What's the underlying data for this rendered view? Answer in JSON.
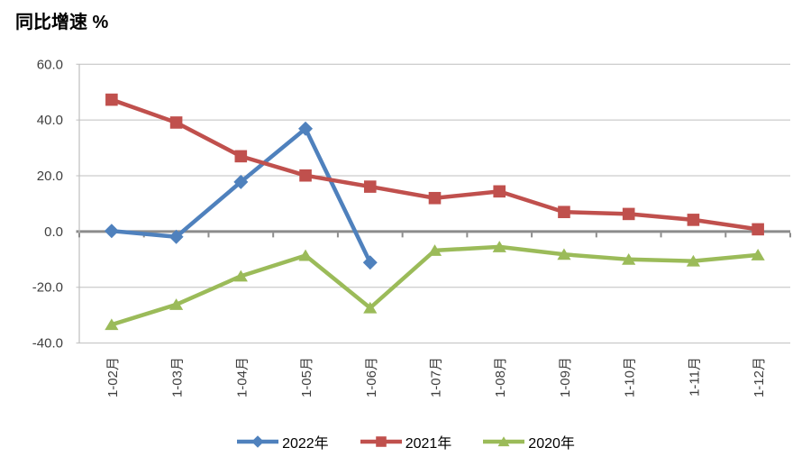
{
  "page": {
    "background": "#ffffff"
  },
  "chart_data": {
    "type": "line",
    "title": "同比增速 %",
    "categories": [
      "1-02月",
      "1-03月",
      "1-04月",
      "1-05月",
      "1-06月",
      "1-07月",
      "1-08月",
      "1-09月",
      "1-10月",
      "1-11月",
      "1-12月"
    ],
    "series": [
      {
        "name": "2022年",
        "color": "#4F81BD",
        "marker": "diamond",
        "values": [
          0.2,
          -1.9,
          17.8,
          36.9,
          -11.1,
          null,
          null,
          null,
          null,
          null,
          null
        ]
      },
      {
        "name": "2021年",
        "color": "#C0504D",
        "marker": "square",
        "values": [
          47.3,
          39.1,
          27.0,
          20.1,
          16.1,
          12.0,
          14.4,
          7.0,
          6.3,
          4.2,
          0.8
        ]
      },
      {
        "name": "2020年",
        "color": "#9BBB59",
        "marker": "triangle",
        "values": [
          -33.4,
          -26.2,
          -16.0,
          -8.6,
          -27.4,
          -6.8,
          -5.5,
          -8.2,
          -10.0,
          -10.6,
          -8.4
        ]
      }
    ],
    "ylim": [
      -40,
      60
    ],
    "yticks": [
      60,
      40,
      20,
      0,
      -20,
      -40
    ],
    "ytick_format": "one-decimal",
    "grid": true,
    "legend_position": "bottom",
    "axis_colors": {
      "gridline": "#BFBFBF",
      "zero_line": "#8C8C8C",
      "tick": "#8C8C8C",
      "label": "#3F3F3F"
    }
  }
}
